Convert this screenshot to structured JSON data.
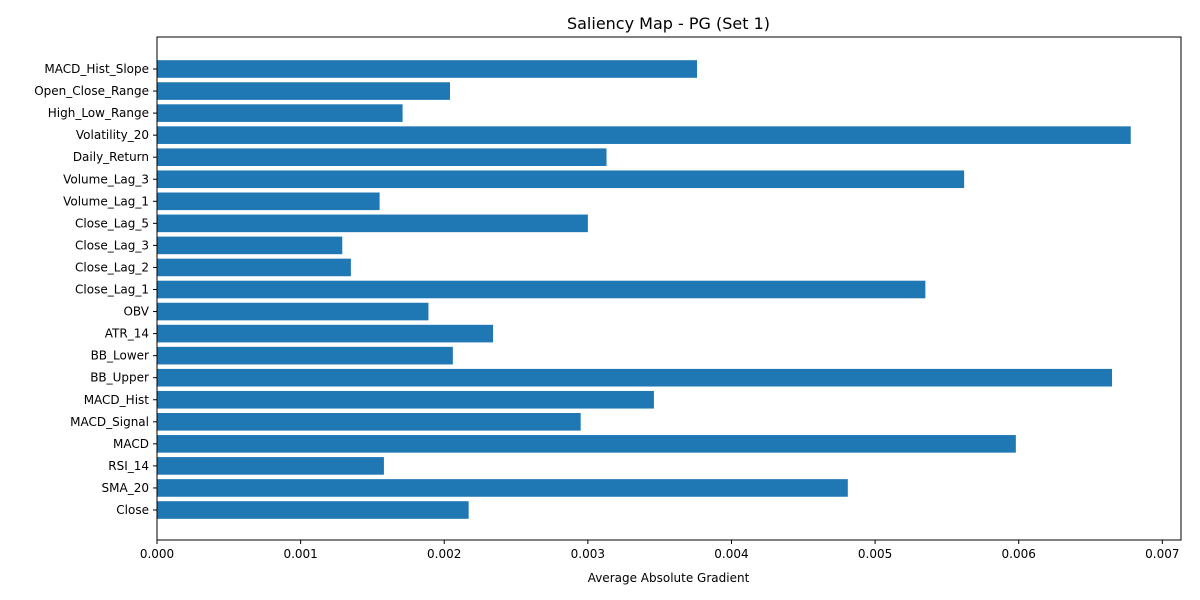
{
  "chart_data": {
    "type": "bar",
    "orientation": "horizontal",
    "title": "Saliency Map - PG (Set 1)",
    "xlabel": "Average Absolute Gradient",
    "ylabel": "",
    "xlim": [
      0,
      0.00713
    ],
    "xticks": [
      0,
      0.001,
      0.002,
      0.003,
      0.004,
      0.005,
      0.006,
      0.007
    ],
    "xtick_labels": [
      "0.000",
      "0.001",
      "0.002",
      "0.003",
      "0.004",
      "0.005",
      "0.006",
      "0.007"
    ],
    "grid": false,
    "bar_color": "#1f77b4",
    "categories": [
      "Close",
      "SMA_20",
      "RSI_14",
      "MACD",
      "MACD_Signal",
      "MACD_Hist",
      "BB_Upper",
      "BB_Lower",
      "ATR_14",
      "OBV",
      "Close_Lag_1",
      "Close_Lag_2",
      "Close_Lag_3",
      "Close_Lag_5",
      "Volume_Lag_1",
      "Volume_Lag_3",
      "Daily_Return",
      "Volatility_20",
      "High_Low_Range",
      "Open_Close_Range",
      "MACD_Hist_Slope"
    ],
    "values": [
      0.00217,
      0.00481,
      0.00158,
      0.00598,
      0.00295,
      0.00346,
      0.00665,
      0.00206,
      0.00234,
      0.00189,
      0.00535,
      0.00135,
      0.00129,
      0.003,
      0.00155,
      0.00562,
      0.00313,
      0.00678,
      0.00171,
      0.00204,
      0.00376
    ]
  }
}
